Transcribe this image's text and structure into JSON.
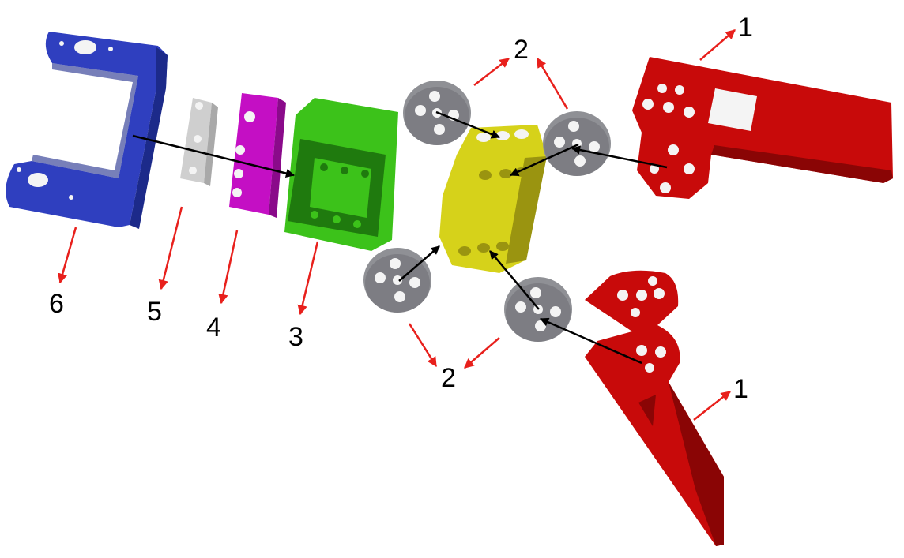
{
  "colors": {
    "bracket": "#2f3fbf",
    "bracket_dark": "#1c2a8a",
    "plate": "#cfcfcf",
    "spacer": "#c40fc4",
    "servo": "#3cc21a",
    "servo_dark": "#1f7a0e",
    "hub": "#d6d21a",
    "hub_dark": "#9a9410",
    "horn": "#8f9095",
    "horn_dark": "#5c5d62",
    "arm": "#c80a0a",
    "arm_dark": "#8a0505",
    "callout_arrow": "#e8201c",
    "assembly_arrow": "#000000",
    "hole": "#f4f4f4"
  },
  "labels": {
    "arm_top": "1",
    "arm_bottom": "1",
    "horns_top": "2",
    "horns_bottom": "2",
    "servo": "3",
    "spacer": "4",
    "plate": "5",
    "bracket": "6"
  }
}
